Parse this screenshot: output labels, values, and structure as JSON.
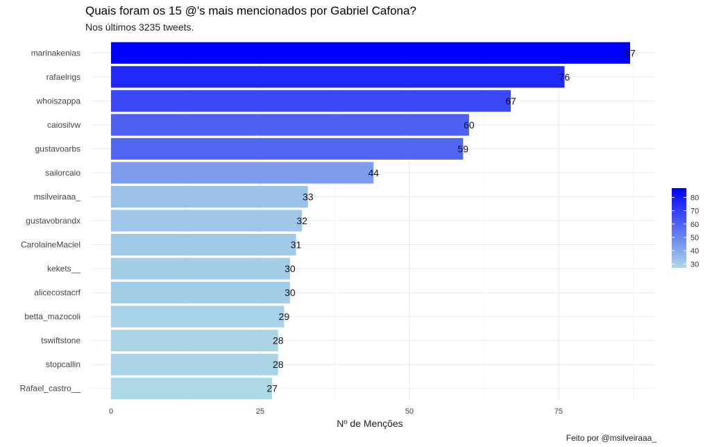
{
  "chart_data": {
    "type": "bar",
    "orientation": "horizontal",
    "title": "Quais foram os 15 @'s mais mencionados por Gabriel Cafona?",
    "subtitle": "Nos últimos 3235 tweets.",
    "caption": "Feito por @msilveiraaa_",
    "xlabel": "Nº de Menções",
    "ylabel": "",
    "xlim": [
      0,
      91.3
    ],
    "xticks": [
      0,
      25,
      50,
      75
    ],
    "grid": true,
    "categories": [
      "marinakenias",
      "rafaelrigs",
      "whoiszappa",
      "caiosilvw",
      "gustavoarbs",
      "sailorcaio",
      "msilveiraaa_",
      "gustavobrandx",
      "CarolaineMaciel",
      "kekets__",
      "alicecostacrf",
      "betta_mazocoli",
      "tswiftstone",
      "stopcallin",
      "Rafael_castro__"
    ],
    "values": [
      87,
      76,
      67,
      60,
      59,
      44,
      33,
      32,
      31,
      30,
      30,
      29,
      28,
      28,
      27
    ],
    "value_labels": [
      "87",
      "76",
      "67",
      "60",
      "59",
      "44",
      "33",
      "32",
      "31",
      "30",
      "30",
      "29",
      "28",
      "28",
      "27"
    ],
    "color_scale": {
      "low": 27,
      "high": 87,
      "low_color": "#add8e6",
      "high_color": "#0000ff",
      "legend_ticks": [
        30,
        40,
        50,
        60,
        70,
        80
      ],
      "legend_tick_labels": [
        "30",
        "40",
        "50",
        "60",
        "70",
        "80"
      ],
      "legend_position": "right"
    }
  }
}
